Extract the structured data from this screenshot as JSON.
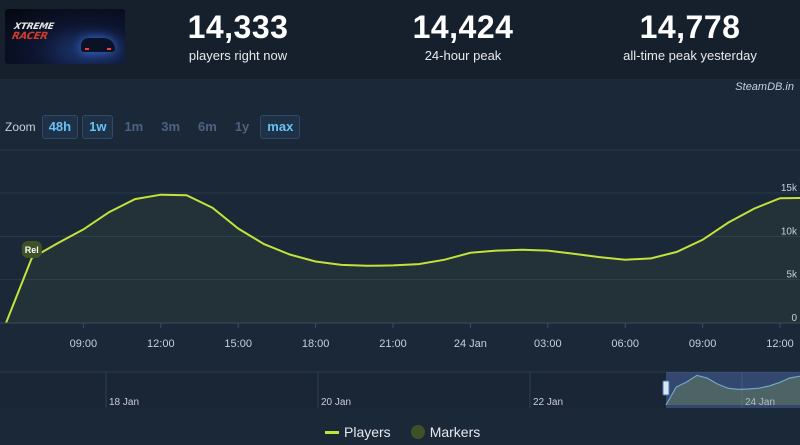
{
  "header": {
    "stats": [
      {
        "value": "14,333",
        "label": "players right now"
      },
      {
        "value": "14,424",
        "label": "24-hour peak"
      },
      {
        "value": "14,778",
        "label": "all-time peak yesterday"
      }
    ],
    "credit": "SteamDB.in"
  },
  "zoom": {
    "label": "Zoom",
    "buttons": [
      {
        "label": "48h",
        "active": true
      },
      {
        "label": "1w",
        "active": true
      },
      {
        "label": "1m",
        "active": false
      },
      {
        "label": "3m",
        "active": false
      },
      {
        "label": "6m",
        "active": false
      },
      {
        "label": "1y",
        "active": false
      },
      {
        "label": "max",
        "active": true
      }
    ]
  },
  "legend": {
    "players": "Players",
    "markers": "Markers"
  },
  "colors": {
    "line": "#c2e33a",
    "marker": "#3f5126",
    "background": "#1b2838"
  },
  "chart_data": {
    "type": "line",
    "series": [
      {
        "name": "Players",
        "x": [
          "06:00",
          "07:00",
          "08:00",
          "09:00",
          "10:00",
          "11:00",
          "12:00",
          "13:00",
          "14:00",
          "15:00",
          "16:00",
          "17:00",
          "18:00",
          "19:00",
          "20:00",
          "21:00",
          "22:00",
          "23:00",
          "24 Jan 00:00",
          "01:00",
          "02:00",
          "03:00",
          "04:00",
          "05:00",
          "06:00",
          "07:00",
          "08:00",
          "09:00",
          "10:00",
          "11:00",
          "12:00",
          "13:00"
        ],
        "values": [
          0,
          7500,
          9200,
          10800,
          12800,
          14300,
          14800,
          14750,
          13300,
          10900,
          9100,
          7900,
          7100,
          6700,
          6600,
          6650,
          6800,
          7300,
          8100,
          8350,
          8450,
          8350,
          8000,
          7600,
          7300,
          7450,
          8200,
          9600,
          11600,
          13200,
          14400,
          14424
        ]
      }
    ],
    "markers": [
      {
        "label": "Rel",
        "x": "07:00"
      }
    ],
    "x_ticks": [
      "09:00",
      "12:00",
      "15:00",
      "18:00",
      "21:00",
      "24 Jan",
      "03:00",
      "06:00",
      "09:00",
      "12:00"
    ],
    "y_ticks": [
      "0",
      "5k",
      "10k",
      "15k"
    ],
    "ylim": [
      0,
      15000
    ],
    "navigator": {
      "labels": [
        "18 Jan",
        "20 Jan",
        "22 Jan",
        "24 Jan"
      ],
      "series_values": [
        0,
        9000,
        11500,
        14800,
        13500,
        10500,
        8400,
        7800,
        8000,
        8400,
        9500,
        11200,
        13500,
        14400
      ]
    }
  }
}
